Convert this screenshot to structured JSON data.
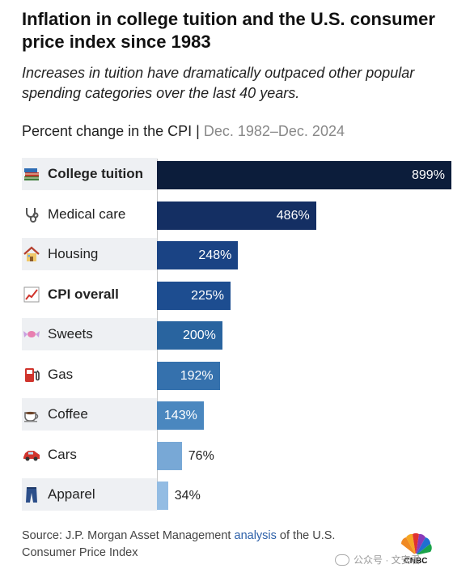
{
  "header": {
    "title": "Inflation in college tuition and the U.S. consumer price index since 1983",
    "subtitle": "Increases in tuition have dramatically outpaced other popular spending categories over the last 40 years.",
    "measure": "Percent change in the CPI",
    "separator": "|",
    "range": "Dec. 1982–Dec. 2024"
  },
  "chart_data": {
    "type": "bar",
    "orientation": "horizontal",
    "categories": [
      "College tuition",
      "Medical care",
      "Housing",
      "CPI overall",
      "Sweets",
      "Gas",
      "Coffee",
      "Cars",
      "Apparel"
    ],
    "values": [
      899,
      486,
      248,
      225,
      200,
      192,
      143,
      76,
      34
    ],
    "value_labels": [
      "899%",
      "486%",
      "248%",
      "225%",
      "200%",
      "192%",
      "143%",
      "76%",
      "34%"
    ],
    "bold_categories": [
      "College tuition",
      "CPI overall"
    ],
    "icons": [
      "books-icon",
      "stethoscope-icon",
      "house-icon",
      "chart-increasing-icon",
      "candy-icon",
      "fuel-pump-icon",
      "coffee-icon",
      "car-icon",
      "jeans-icon"
    ],
    "bar_colors": [
      "#0c1d3b",
      "#142f63",
      "#1a4384",
      "#1d4d90",
      "#29649f",
      "#3571ad",
      "#4a87bf",
      "#78a8d6",
      "#93bce3"
    ],
    "xlim": [
      0,
      899
    ]
  },
  "footer": {
    "source_prefix": "Source: J.P. Morgan Asset Management ",
    "source_link": "analysis",
    "source_suffix": " of the U.S. Consumer Price Index",
    "logo_text": "CNBC",
    "watermark": "公众号 · 文安君"
  },
  "colors": {
    "link": "#2b5fa8",
    "stripe": "#eef0f3"
  }
}
